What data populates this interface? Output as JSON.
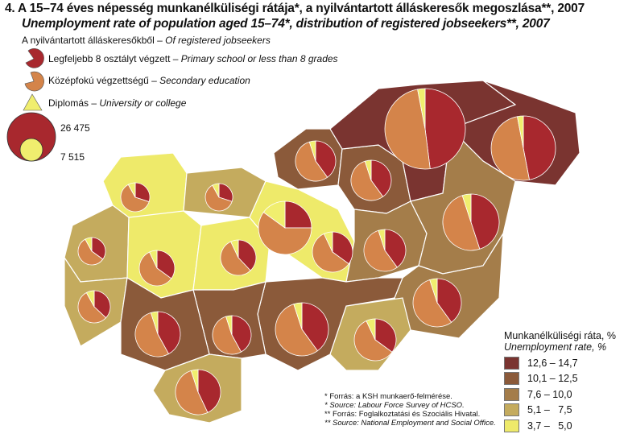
{
  "title": {
    "hu": "4.  A 15–74 éves népesség munkanélküliségi rátája*, a nyilvántartott álláskeresők megoszlása**, 2007",
    "en": "Unemployment rate of population aged 15–74*, distribution of registered jobseekers**, 2007"
  },
  "pie_legend": {
    "heading_hu": "A nyilvántartott álláskeresőkből – ",
    "heading_en": "Of registered jobseekers",
    "items": [
      {
        "hu": "Legfeljebb 8 osztályt végzett – ",
        "en": "Primary school or less than 8 grades",
        "color": "#a8282e"
      },
      {
        "hu": "Középfokú végzettségű – ",
        "en": "Secondary education",
        "color": "#d4844a"
      },
      {
        "hu": "Diplomás – ",
        "en": "University or college",
        "color": "#f0ee6e"
      }
    ],
    "size_max": "26 475",
    "size_min": "7 515"
  },
  "rate_legend": {
    "title_hu": "Munkanélküliségi ráta, %",
    "title_en": "Unemployment rate, %",
    "classes": [
      {
        "label": "12,6 – 14,7",
        "color": "#7a3430"
      },
      {
        "label": "10,1 – 12,5",
        "color": "#8b5a3a"
      },
      {
        "label": "7,6 – 10,0",
        "color": "#a47d4a"
      },
      {
        "label": "5,1 –   7,5",
        "color": "#c4ab5e"
      },
      {
        "label": "3,7 –   5,0",
        "color": "#eeea6a"
      }
    ]
  },
  "notes": [
    "*   Forrás: a KSH munkaerő-felmérése.",
    "*   Source: Labour Force Survey of HCSO.",
    "** Forrás: Foglalkoztatási és Szociális Hivatal.",
    "** Source: National Employment and Social Office."
  ],
  "pie_shares_percent": [
    [
      30,
      62,
      8
    ],
    [
      30,
      62,
      8
    ],
    [
      35,
      57,
      8
    ],
    [
      35,
      58,
      7
    ],
    [
      38,
      55,
      7
    ],
    [
      25,
      60,
      15
    ],
    [
      35,
      58,
      7
    ],
    [
      40,
      55,
      5
    ],
    [
      48,
      49,
      3
    ],
    [
      47,
      50,
      3
    ],
    [
      40,
      55,
      5
    ],
    [
      40,
      55,
      5
    ],
    [
      45,
      50,
      5
    ],
    [
      40,
      55,
      5
    ],
    [
      35,
      58,
      7
    ],
    [
      40,
      55,
      5
    ],
    [
      42,
      53,
      5
    ],
    [
      37,
      55,
      8
    ],
    [
      42,
      53,
      5
    ],
    [
      43,
      52,
      5
    ]
  ]
}
